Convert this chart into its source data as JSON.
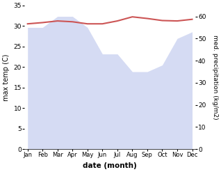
{
  "months": [
    "Jan",
    "Feb",
    "Mar",
    "Apr",
    "May",
    "Jun",
    "Jul",
    "Aug",
    "Sep",
    "Oct",
    "Nov",
    "Dec"
  ],
  "month_x": [
    0,
    1,
    2,
    3,
    4,
    5,
    6,
    7,
    8,
    9,
    10,
    11
  ],
  "temp_max": [
    30.5,
    30.8,
    31.2,
    31.0,
    30.5,
    30.5,
    31.2,
    32.2,
    31.8,
    31.3,
    31.2,
    31.6
  ],
  "precipitation": [
    55,
    55,
    60,
    60,
    55,
    43,
    43,
    35,
    35,
    38,
    50,
    53
  ],
  "temp_color": "#cc5555",
  "precip_color": "#8899dd",
  "precip_fill_alpha": 0.35,
  "temp_ylim": [
    0,
    35
  ],
  "precip_ylim": [
    0,
    65
  ],
  "temp_yticks": [
    0,
    5,
    10,
    15,
    20,
    25,
    30,
    35
  ],
  "precip_yticks": [
    0,
    10,
    20,
    30,
    40,
    50,
    60
  ],
  "xlabel": "date (month)",
  "ylabel_left": "max temp (C)",
  "ylabel_right": "med. precipitation (kg/m2)",
  "background_color": "#ffffff",
  "figsize": [
    3.18,
    2.47
  ],
  "dpi": 100
}
